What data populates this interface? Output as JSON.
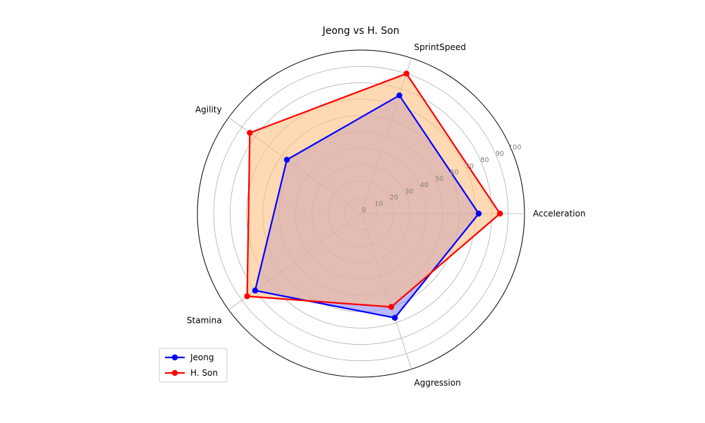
{
  "chart_data": {
    "type": "radar",
    "title": "Jeong vs H. Son",
    "axes": [
      "Acceleration",
      "SprintSpeed",
      "Agility",
      "Stamina",
      "Aggression"
    ],
    "rlim": [
      0,
      100
    ],
    "rticks": [
      0,
      10,
      20,
      30,
      40,
      50,
      60,
      70,
      80,
      90,
      100
    ],
    "rtick_labels": [
      "0",
      "10",
      "20",
      "30",
      "40",
      "50",
      "60",
      "70",
      "80",
      "90",
      "100"
    ],
    "grid": true,
    "legend_placement": "lower-left",
    "series": [
      {
        "name": "Jeong",
        "values": [
          72,
          76,
          56,
          80,
          67
        ],
        "color": "#0000ff",
        "fill": "#8c8cff"
      },
      {
        "name": "H. Son",
        "values": [
          85,
          90,
          84,
          86,
          60
        ],
        "color": "#ff0000",
        "fill": "#ffbf80"
      }
    ],
    "fill_color": "#d2b48c"
  }
}
